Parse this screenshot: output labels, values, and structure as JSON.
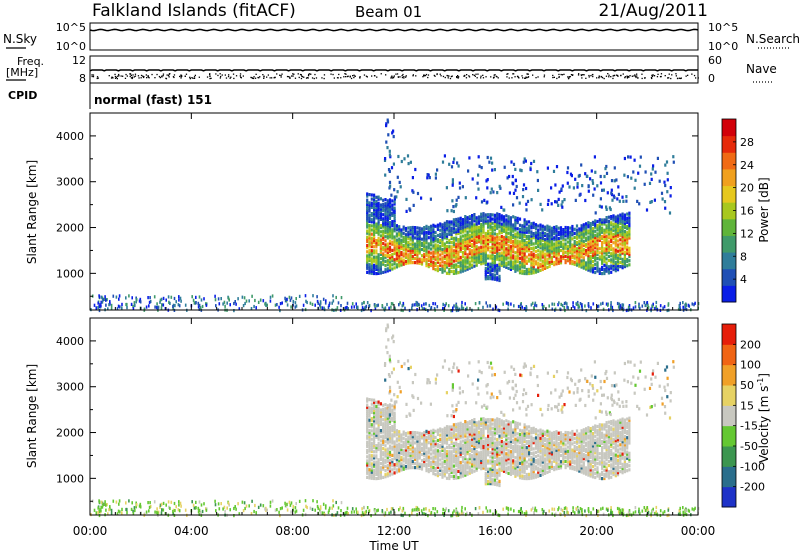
{
  "header": {
    "title": "Falkland Islands (fitACF)",
    "beam": "Beam 01",
    "date": "21/Aug/2011"
  },
  "noise_panel": {
    "left_label": "N.Sky",
    "right_label": "N.Search",
    "left_ticks": [
      "10^5",
      "10^0"
    ],
    "right_ticks": [
      "10^5",
      "10^0"
    ]
  },
  "freq_panel": {
    "left_label_1": "Freq.",
    "left_label_2": "[MHz]",
    "left_ticks": [
      "12",
      "8"
    ],
    "right_label": "Nave",
    "right_ticks": [
      "60",
      "0"
    ],
    "cpid_label": "CPID",
    "mode_text": "normal (fast) 151"
  },
  "chart_data": [
    {
      "type": "heatmap",
      "panel": "power",
      "ylabel": "Slant Range [km]",
      "yticks": [
        1000,
        2000,
        3000,
        4000
      ],
      "ylim": [
        200,
        4500
      ],
      "xticks": [
        "00:00",
        "04:00",
        "08:00",
        "12:00",
        "16:00",
        "20:00",
        "00:00"
      ],
      "xlim_hours": [
        0,
        24
      ],
      "colorbar": {
        "label": "Power [dB]",
        "ticks": [
          "28",
          "24",
          "20",
          "16",
          "12",
          "8",
          "4"
        ],
        "colors": [
          "#0a1ee6",
          "#1f4fb5",
          "#2f7d9a",
          "#3f9a6a",
          "#5fb43a",
          "#a8c81e",
          "#e6c81e",
          "#f0a01e",
          "#f06a14",
          "#e62a0a",
          "#d2000a"
        ]
      },
      "regions": [
        {
          "desc": "main echo band",
          "x": [
            10.9,
            21.3
          ],
          "y": [
            1100,
            2200
          ],
          "peak": "near 1300-1800 km"
        },
        {
          "desc": "upper sparse echoes",
          "x": [
            12.0,
            23.0
          ],
          "y": [
            2400,
            3600
          ]
        },
        {
          "desc": "near-range scatter",
          "x": [
            0,
            24
          ],
          "y": [
            200,
            500
          ]
        }
      ]
    },
    {
      "type": "heatmap",
      "panel": "velocity",
      "ylabel": "Slant Range [km]",
      "yticks": [
        1000,
        2000,
        3000,
        4000
      ],
      "ylim": [
        200,
        4500
      ],
      "xticks": [
        "00:00",
        "04:00",
        "08:00",
        "12:00",
        "16:00",
        "20:00",
        "00:00"
      ],
      "xlabel": "Time UT",
      "xlim_hours": [
        0,
        24
      ],
      "colorbar": {
        "label": "Velocity [m s",
        "label_sup": "-1",
        "label_end": "]",
        "ticks": [
          "200",
          "100",
          "50",
          "15",
          "-15",
          "-50",
          "-100",
          "-200"
        ],
        "colors": [
          "#1e32c8",
          "#2a6e8c",
          "#3c9650",
          "#64c832",
          "#c8c8c0",
          "#e6d264",
          "#f0a028",
          "#f06414",
          "#e61e0a"
        ]
      },
      "regions": [
        {
          "desc": "main band mostly near zero velocity (grey)",
          "x": [
            10.9,
            21.3
          ],
          "y": [
            1100,
            2200
          ]
        },
        {
          "desc": "near-range green scatter",
          "x": [
            0,
            24
          ],
          "y": [
            200,
            500
          ]
        }
      ]
    }
  ]
}
